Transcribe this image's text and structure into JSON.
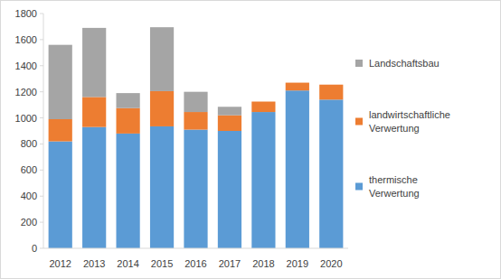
{
  "chart_data": {
    "type": "bar",
    "stacked": true,
    "legend": "right",
    "grid": false,
    "categories": [
      "2012",
      "2013",
      "2014",
      "2015",
      "2016",
      "2017",
      "2018",
      "2019",
      "2020"
    ],
    "series": [
      {
        "name": "thermische Verwertung",
        "color": "#5b9bd5",
        "values": [
          820,
          930,
          880,
          935,
          910,
          900,
          1045,
          1210,
          1140
        ]
      },
      {
        "name": "landwirtschaftliche Verwertung",
        "color": "#ed7d31",
        "values": [
          170,
          230,
          195,
          270,
          135,
          120,
          80,
          60,
          115
        ]
      },
      {
        "name": "Landschaftsbau",
        "color": "#a5a5a5",
        "values": [
          570,
          530,
          115,
          490,
          155,
          65,
          0,
          0,
          0
        ]
      }
    ],
    "ylim": [
      0,
      1800
    ],
    "yticks": [
      0,
      200,
      400,
      600,
      800,
      1000,
      1200,
      1400,
      1600,
      1800
    ]
  }
}
